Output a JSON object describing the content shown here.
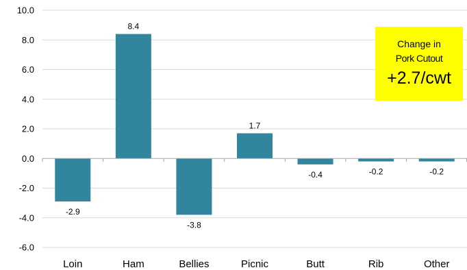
{
  "chart_data": {
    "type": "bar",
    "title": "",
    "xlabel": "",
    "ylabel": "",
    "categories": [
      "Loin",
      "Ham",
      "Bellies",
      "Picnic",
      "Butt",
      "Rib",
      "Other"
    ],
    "values": [
      -2.9,
      8.4,
      -3.8,
      1.7,
      -0.4,
      -0.2,
      -0.2
    ],
    "data_labels": [
      "-2.9",
      "8.4",
      "-3.8",
      "1.7",
      "-0.4",
      "-0.2",
      "-0.2"
    ],
    "ylim": [
      -6.0,
      10.0
    ],
    "yticks": [
      10.0,
      8.0,
      6.0,
      4.0,
      2.0,
      0.0,
      -2.0,
      -4.0,
      -6.0
    ],
    "ytick_labels": [
      "10.0",
      "8.0",
      "6.0",
      "4.0",
      "2.0",
      "0.0",
      "-2.0",
      "-4.0",
      "-6.0"
    ],
    "grid": "horizontal",
    "bar_color": "#31859c",
    "grid_color": "#d9d9d9"
  },
  "callout": {
    "line1": "Change in",
    "line2": "Pork Cutout",
    "value": "+2.7/cwt",
    "background": "#ffff00"
  }
}
